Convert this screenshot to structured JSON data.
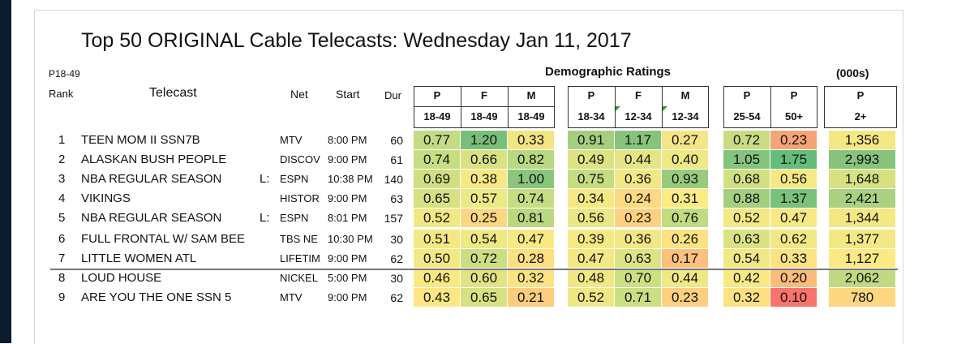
{
  "title": "Top 50 ORIGINAL Cable Telecasts:  Wednesday Jan 11, 2017",
  "subhead": {
    "p18": "P18-49",
    "rank": "Rank",
    "telecast": "Telecast",
    "net": "Net",
    "start": "Start",
    "dur": "Dur",
    "demo": "Demographic Ratings",
    "thousands": "(000s)"
  },
  "columns": [
    {
      "top": "P",
      "bottom": "18-49"
    },
    {
      "top": "F",
      "bottom": "18-49"
    },
    {
      "top": "M",
      "bottom": "18-49"
    },
    {
      "top": "P",
      "bottom": "18-34"
    },
    {
      "top": "F",
      "bottom": "12-34"
    },
    {
      "top": "M",
      "bottom": "12-34"
    },
    {
      "top": "P",
      "bottom": "25-54"
    },
    {
      "top": "P",
      "bottom": "50+"
    },
    {
      "top": "P",
      "bottom": "2+"
    }
  ],
  "rows": [
    {
      "rank": "1",
      "telecast": "TEEN MOM II SSN7B",
      "live": "",
      "net": "MTV",
      "start": "8:00 PM",
      "dur": "60",
      "values": [
        "0.77",
        "1.20",
        "0.33",
        "0.91",
        "1.17",
        "0.27",
        "0.72",
        "0.23",
        "1,356"
      ],
      "colors": [
        "#c3dc83",
        "#79bf79",
        "#f2e582",
        "#a5cf7f",
        "#86c47c",
        "#f6e586",
        "#c8dd82",
        "#f5a475",
        "#f4e883"
      ]
    },
    {
      "rank": "2",
      "telecast": "ALASKAN BUSH PEOPLE",
      "live": "",
      "net": "DISCOV",
      "start": "9:00 PM",
      "dur": "61",
      "values": [
        "0.74",
        "0.66",
        "0.82",
        "0.49",
        "0.44",
        "0.40",
        "1.05",
        "1.75",
        "2,993"
      ],
      "colors": [
        "#c6dd82",
        "#d9e282",
        "#b9d880",
        "#dde383",
        "#e6e584",
        "#eee885",
        "#85c47c",
        "#63be7b",
        "#86c47c"
      ]
    },
    {
      "rank": "3",
      "telecast": "NBA REGULAR SEASON",
      "live": "L:",
      "net": "ESPN",
      "start": "10:38 PM",
      "dur": "140",
      "values": [
        "0.69",
        "0.38",
        "1.00",
        "0.75",
        "0.36",
        "0.93",
        "0.68",
        "0.56",
        "1,648"
      ],
      "colors": [
        "#cfdf82",
        "#f6e884",
        "#8bc67c",
        "#c4dc82",
        "#f2e784",
        "#99cb7e",
        "#d1e082",
        "#f6e883",
        "#d6e182"
      ]
    },
    {
      "rank": "4",
      "telecast": "VIKINGS",
      "live": "",
      "net": "HISTOR",
      "start": "9:00 PM",
      "dur": "63",
      "values": [
        "0.65",
        "0.57",
        "0.74",
        "0.34",
        "0.24",
        "0.31",
        "0.88",
        "1.37",
        "2,421"
      ],
      "colors": [
        "#d6e182",
        "#ecea84",
        "#c6dd82",
        "#f6e984",
        "#fdd981",
        "#faeb84",
        "#a4cf7f",
        "#7ac17b",
        "#a9d17f"
      ]
    },
    {
      "rank": "5",
      "telecast": "NBA REGULAR SEASON",
      "live": "L:",
      "net": "ESPN",
      "start": "8:01 PM",
      "dur": "157",
      "values": [
        "0.52",
        "0.25",
        "0.81",
        "0.56",
        "0.23",
        "0.76",
        "0.52",
        "0.47",
        "1,344"
      ],
      "colors": [
        "#f1e884",
        "#fdd780",
        "#bad880",
        "#eae884",
        "#fdd17f",
        "#c1db81",
        "#f4e884",
        "#f8e983",
        "#f4e883"
      ]
    },
    {
      "rank": "6",
      "telecast": "FULL FRONTAL W/ SAM BEE",
      "live": "",
      "net": "TBS NE",
      "start": "10:30 PM",
      "dur": "30",
      "values": [
        "0.51",
        "0.54",
        "0.47",
        "0.39",
        "0.36",
        "0.26",
        "0.63",
        "0.62",
        "1,377"
      ],
      "colors": [
        "#f3e884",
        "#eee885",
        "#f8e984",
        "#f6e984",
        "#f2e784",
        "#fde283",
        "#dbe283",
        "#f1e885",
        "#f4e883"
      ]
    },
    {
      "rank": "7",
      "telecast": "LITTLE WOMEN ATL",
      "live": "",
      "net": "LIFETIM",
      "start": "9:00 PM",
      "dur": "62",
      "values": [
        "0.50",
        "0.72",
        "0.28",
        "0.47",
        "0.63",
        "0.17",
        "0.54",
        "0.33",
        "1,127"
      ],
      "colors": [
        "#f4e884",
        "#cbde82",
        "#fdde82",
        "#f4e884",
        "#dde383",
        "#fcc07c",
        "#f1e884",
        "#fde282",
        "#fce982"
      ]
    },
    {
      "rank": "8",
      "telecast": "LOUD HOUSE",
      "live": "",
      "net": "NICKEL",
      "start": "5:00 PM",
      "dur": "30",
      "values": [
        "0.46",
        "0.60",
        "0.32",
        "0.48",
        "0.70",
        "0.44",
        "0.42",
        "0.20",
        "2,062"
      ],
      "colors": [
        "#fae983",
        "#e2e483",
        "#fbe383",
        "#f1e785",
        "#ccdf82",
        "#efe884",
        "#f9e984",
        "#fbbb7b",
        "#c1da81"
      ]
    },
    {
      "rank": "9",
      "telecast": "ARE YOU THE ONE SSN 5",
      "live": "",
      "net": "MTV",
      "start": "9:00 PM",
      "dur": "62",
      "values": [
        "0.43",
        "0.65",
        "0.21",
        "0.52",
        "0.71",
        "0.23",
        "0.32",
        "0.10",
        "780"
      ],
      "colors": [
        "#fde683",
        "#d8e182",
        "#fdcd7e",
        "#ede885",
        "#cade82",
        "#fdd07f",
        "#fde082",
        "#f8736b",
        "#fdd780"
      ]
    }
  ]
}
